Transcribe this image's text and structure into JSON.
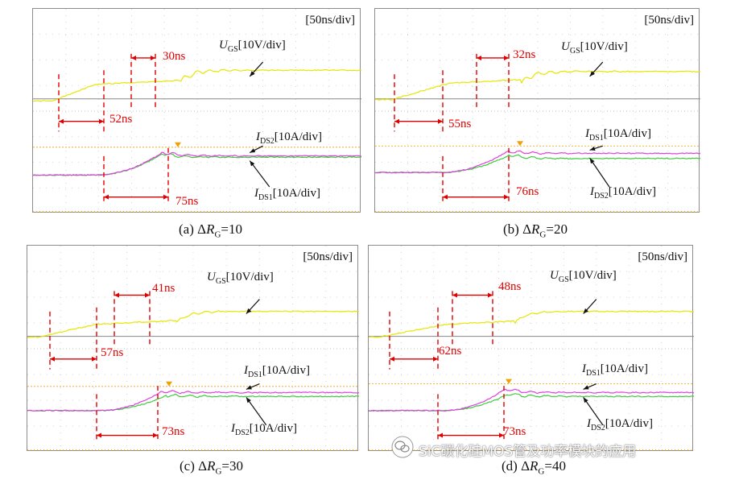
{
  "colors": {
    "ugs": "#e6e600",
    "pink": "#e040e0",
    "green": "#3dcc3d",
    "red": "#e00000",
    "ref": "#f0a000"
  },
  "chart_data": [
    {
      "type": "line",
      "title": "(a) ΔRG=10",
      "caption": {
        "prefix": "(a) Δ",
        "var": "R",
        "sub": "G",
        "value": "=10"
      },
      "time_scale": "[50ns/div]",
      "ugs_label": {
        "var": "U",
        "sub": "GS",
        "unit": "[10V/div]"
      },
      "top_current_label": {
        "var": "I",
        "sub": "DS2",
        "unit": "[10A/div]"
      },
      "bottom_current_label": {
        "var": "I",
        "sub": "DS1",
        "unit": "[10A/div]"
      },
      "delay_ugs": "52ns",
      "plateau": "30ns",
      "current_rise": "75ns",
      "series": [
        {
          "name": "UGS",
          "pre": -0.2,
          "rise_start": 0.6,
          "rise_end": 1.9,
          "top": 0.45,
          "final": 1.0,
          "ring": 0.12
        },
        {
          "name": "IDS-pink",
          "base": 3.5,
          "rise_start": 1.9,
          "peak_t": 3.95,
          "peak": 2.6,
          "final": 2.75
        },
        {
          "name": "IDS-green",
          "base": 3.5,
          "rise_start": 1.9,
          "peak_t": 3.95,
          "peak": 2.65,
          "final": 2.8
        }
      ]
    },
    {
      "type": "line",
      "title": "(b) ΔRG=20",
      "caption": {
        "prefix": "(b) Δ",
        "var": "R",
        "sub": "G",
        "value": "=20"
      },
      "time_scale": "[50ns/div]",
      "ugs_label": {
        "var": "U",
        "sub": "GS",
        "unit": "[10V/div]"
      },
      "top_current_label": {
        "var": "I",
        "sub": "DS1",
        "unit": "[10A/div]"
      },
      "bottom_current_label": {
        "var": "I",
        "sub": "DS2",
        "unit": "[10A/div]"
      },
      "delay_ugs": "55ns",
      "plateau": "32ns",
      "current_rise": "76ns",
      "series": [
        {
          "name": "UGS",
          "pre": -0.15,
          "rise_start": 0.5,
          "rise_end": 2.3,
          "top": 0.5,
          "final": 0.95,
          "ring": 0.1
        },
        {
          "name": "IDS-pink",
          "base": 3.4,
          "rise_start": 2.0,
          "peak_t": 4.1,
          "peak": 2.55,
          "final": 2.65
        },
        {
          "name": "IDS-green",
          "base": 3.4,
          "rise_start": 2.0,
          "peak_t": 4.15,
          "peak": 2.7,
          "final": 2.85
        }
      ]
    },
    {
      "type": "line",
      "title": "(c) ΔRG=30",
      "caption": {
        "prefix": "(c) Δ",
        "var": "R",
        "sub": "G",
        "value": "=30"
      },
      "time_scale": "[50ns/div]",
      "ugs_label": {
        "var": "U",
        "sub": "GS",
        "unit": "[10V/div]"
      },
      "top_current_label": {
        "var": "I",
        "sub": "DS1",
        "unit": "[10A/div]"
      },
      "bottom_current_label": {
        "var": "I",
        "sub": "DS2",
        "unit": "[10A/div]"
      },
      "delay_ugs": "57ns",
      "plateau": "41ns",
      "current_rise": "73ns",
      "series": [
        {
          "name": "UGS",
          "pre": -0.15,
          "rise_start": 0.3,
          "rise_end": 2.1,
          "top": 0.35,
          "final": 0.85,
          "ring": 0.06
        },
        {
          "name": "IDS-pink",
          "base": 3.4,
          "rise_start": 2.2,
          "peak_t": 4.05,
          "peak": 2.65,
          "final": 2.7
        },
        {
          "name": "IDS-green",
          "base": 3.4,
          "rise_start": 2.2,
          "peak_t": 4.2,
          "peak": 2.8,
          "final": 2.85
        }
      ]
    },
    {
      "type": "line",
      "title": "(d) ΔRG=40",
      "caption": {
        "prefix": "(d) Δ",
        "var": "R",
        "sub": "G",
        "value": "=40"
      },
      "time_scale": "[50ns/div]",
      "ugs_label": {
        "var": "U",
        "sub": "GS",
        "unit": "[10V/div]"
      },
      "top_current_label": {
        "var": "I",
        "sub": "DS1",
        "unit": "[10A/div]"
      },
      "bottom_current_label": {
        "var": "I",
        "sub": "DS2",
        "unit": "[10A/div]"
      },
      "delay_ugs": "62ns",
      "plateau": "48ns",
      "current_rise": "73ns",
      "series": [
        {
          "name": "UGS",
          "pre": -0.15,
          "rise_start": 0.3,
          "rise_end": 2.4,
          "top": 0.35,
          "final": 0.85,
          "ring": 0.05
        },
        {
          "name": "IDS-pink",
          "base": 3.4,
          "rise_start": 2.3,
          "peak_t": 4.2,
          "peak": 2.55,
          "final": 2.7
        },
        {
          "name": "IDS-green",
          "base": 3.4,
          "rise_start": 2.3,
          "peak_t": 4.3,
          "peak": 2.75,
          "final": 2.85
        }
      ]
    }
  ],
  "watermark": "SiC碳化硅MOS管及功率模块的应用"
}
